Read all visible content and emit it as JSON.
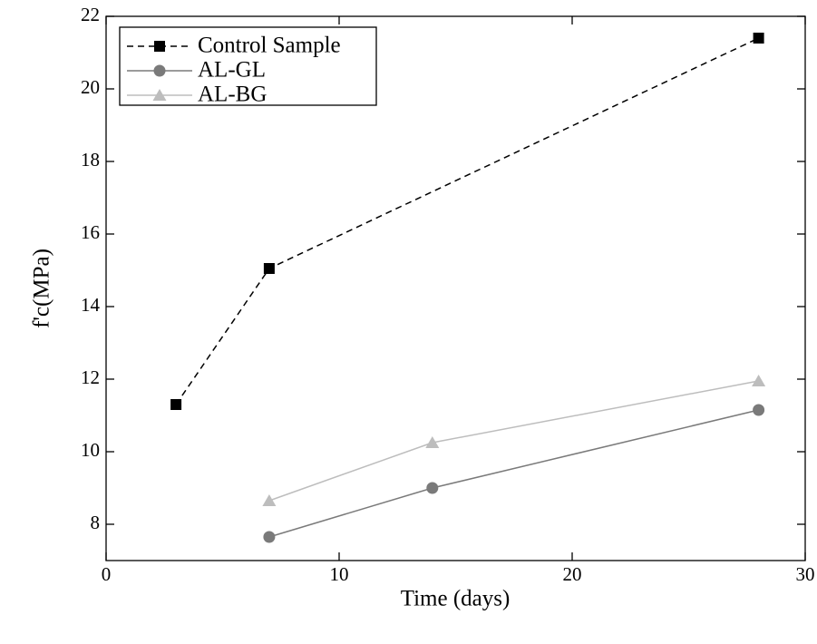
{
  "chart_data": {
    "type": "line",
    "xlabel": "Time (days)",
    "ylabel": "f'c(MPa)",
    "xlim": [
      0,
      30
    ],
    "xticks": [
      0,
      10,
      20,
      30
    ],
    "ylim": [
      7,
      22
    ],
    "yticks": [
      8,
      10,
      12,
      14,
      16,
      18,
      20,
      22
    ],
    "legend": "upper left",
    "series": [
      {
        "name": "Control Sample",
        "color": "#000000",
        "marker": "square",
        "linestyle": "dashed",
        "x": [
          3,
          7,
          28
        ],
        "values": [
          11.3,
          15.05,
          21.4
        ]
      },
      {
        "name": "AL-GL",
        "color": "#7a7a7a",
        "marker": "circle",
        "linestyle": "solid",
        "x": [
          7,
          14,
          28
        ],
        "values": [
          7.65,
          9.0,
          11.15
        ]
      },
      {
        "name": "AL-BG",
        "color": "#bdbdbd",
        "marker": "triangle",
        "linestyle": "solid",
        "x": [
          7,
          14,
          28
        ],
        "values": [
          8.65,
          10.25,
          11.95
        ]
      }
    ]
  }
}
